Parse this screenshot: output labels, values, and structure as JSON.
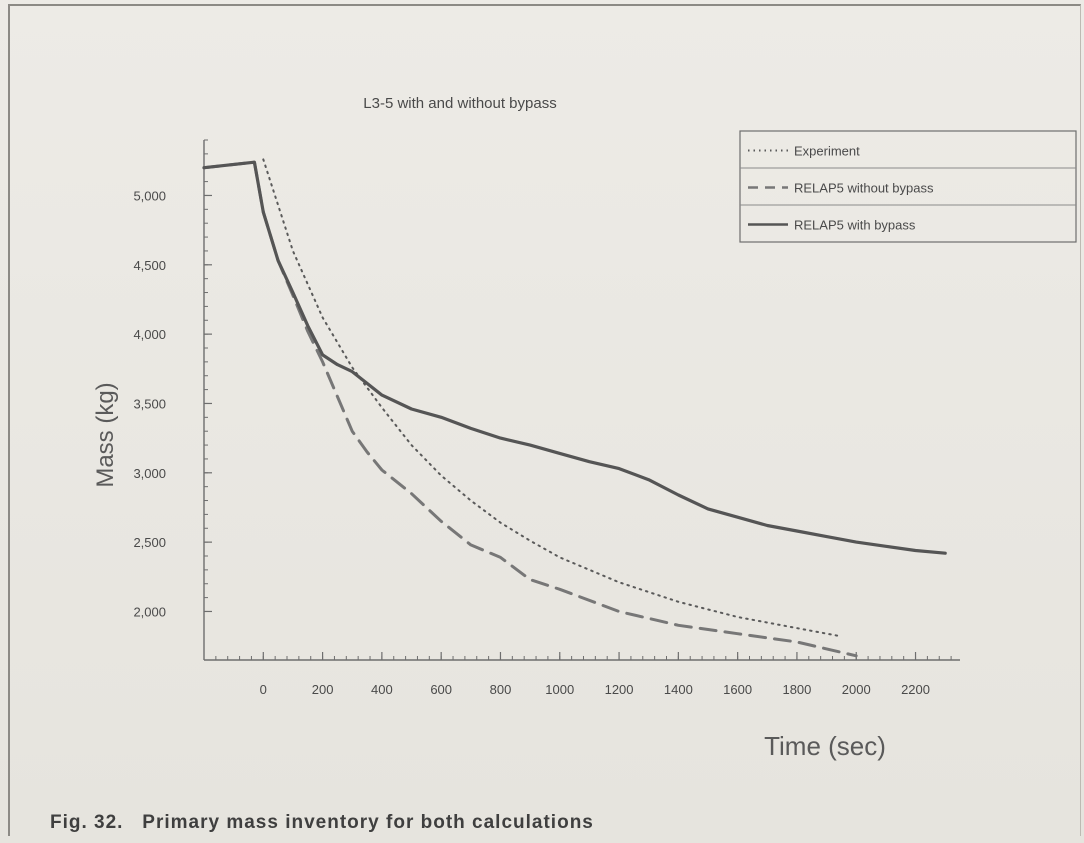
{
  "caption": "Fig. 32.   Primary mass inventory for both calculations",
  "chart_data": {
    "type": "line",
    "title": "L3-5 with and without bypass",
    "xlabel": "Time (sec)",
    "ylabel": "Mass (kg)",
    "xlim": [
      -200,
      2350
    ],
    "ylim": [
      1650,
      5400
    ],
    "x_ticks": [
      0,
      200,
      400,
      600,
      800,
      1000,
      1200,
      1400,
      1600,
      1800,
      2000,
      2200
    ],
    "x_tick_labels": [
      "0",
      "200",
      "400",
      "600",
      "800",
      "1000",
      "1200",
      "1400",
      "1600",
      "1800",
      "2000",
      "2200"
    ],
    "y_ticks": [
      2000,
      2500,
      3000,
      3500,
      4000,
      4500,
      5000
    ],
    "y_tick_labels": [
      "2,000",
      "2,500",
      "3,000",
      "3,500",
      "4,000",
      "4,500",
      "5,000"
    ],
    "legend_position": "top-right",
    "series": [
      {
        "name": "Experiment",
        "style": "dotted",
        "color": "#5a5a5a",
        "x": [
          0,
          100,
          200,
          300,
          400,
          500,
          600,
          700,
          800,
          900,
          1000,
          1200,
          1400,
          1600,
          1800,
          1950
        ],
        "y": [
          5260,
          4600,
          4120,
          3760,
          3470,
          3200,
          2980,
          2800,
          2640,
          2510,
          2390,
          2210,
          2070,
          1960,
          1880,
          1820
        ]
      },
      {
        "name": "RELAP5 without bypass",
        "style": "dashed",
        "color": "#777777",
        "x": [
          -200,
          -30,
          0,
          50,
          100,
          150,
          200,
          250,
          300,
          350,
          400,
          500,
          600,
          700,
          800,
          900,
          1000,
          1200,
          1400,
          1600,
          1800,
          1900,
          2000
        ],
        "y": [
          5200,
          5240,
          4880,
          4530,
          4280,
          4020,
          3800,
          3550,
          3300,
          3150,
          3020,
          2850,
          2650,
          2480,
          2390,
          2230,
          2160,
          2000,
          1900,
          1840,
          1780,
          1730,
          1680
        ]
      },
      {
        "name": "RELAP5 with bypass",
        "style": "solid",
        "color": "#555555",
        "x": [
          -200,
          -30,
          0,
          50,
          100,
          150,
          200,
          250,
          300,
          400,
          500,
          600,
          700,
          800,
          900,
          1000,
          1100,
          1200,
          1300,
          1400,
          1500,
          1600,
          1700,
          1800,
          1900,
          2000,
          2100,
          2200,
          2300
        ],
        "y": [
          5200,
          5240,
          4880,
          4530,
          4300,
          4060,
          3850,
          3780,
          3730,
          3560,
          3460,
          3400,
          3320,
          3250,
          3200,
          3140,
          3080,
          3030,
          2950,
          2840,
          2740,
          2680,
          2620,
          2580,
          2540,
          2500,
          2470,
          2440,
          2420
        ]
      }
    ]
  }
}
